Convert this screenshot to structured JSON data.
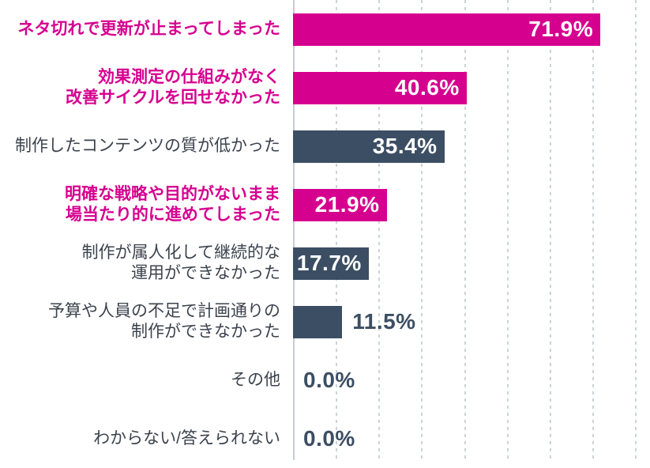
{
  "chart_data": {
    "type": "bar",
    "orientation": "horizontal",
    "title": "",
    "xlabel": "",
    "ylabel": "",
    "unit": "%",
    "xlim": [
      0,
      83.5
    ],
    "gridline_step_percent": 10,
    "grid": true,
    "legend": false,
    "categories": [
      "ネタ切れで更新が止まってしまった",
      "効果測定の仕組みがなく\n改善サイクルを回せなかった",
      "制作したコンテンツの質が低かった",
      "明確な戦略や目的がないまま\n場当たり的に進めてしまった",
      "制作が属人化して継続的な\n運用ができなかった",
      "予算や人員の不足で計画通りの\n制作ができなかった",
      "その他",
      "わからない/答えられない"
    ],
    "values": [
      71.9,
      40.6,
      35.4,
      21.9,
      17.7,
      11.5,
      0.0,
      0.0
    ],
    "rows": [
      {
        "label": "ネタ切れで更新が止まってしまった",
        "value": 71.9,
        "value_label": "71.9%",
        "bar_color": "magenta",
        "label_color": "magenta",
        "label_bold": true,
        "value_position": "inside"
      },
      {
        "label": "効果測定の仕組みがなく\n改善サイクルを回せなかった",
        "value": 40.6,
        "value_label": "40.6%",
        "bar_color": "magenta",
        "label_color": "magenta",
        "label_bold": true,
        "value_position": "inside"
      },
      {
        "label": "制作したコンテンツの質が低かった",
        "value": 35.4,
        "value_label": "35.4%",
        "bar_color": "navy",
        "label_color": "dark",
        "label_bold": false,
        "value_position": "inside"
      },
      {
        "label": "明確な戦略や目的がないまま\n場当たり的に進めてしまった",
        "value": 21.9,
        "value_label": "21.9%",
        "bar_color": "magenta",
        "label_color": "magenta",
        "label_bold": true,
        "value_position": "inside"
      },
      {
        "label": "制作が属人化して継続的な\n運用ができなかった",
        "value": 17.7,
        "value_label": "17.7%",
        "bar_color": "navy",
        "label_color": "dark",
        "label_bold": false,
        "value_position": "inside"
      },
      {
        "label": "予算や人員の不足で計画通りの\n制作ができなかった",
        "value": 11.5,
        "value_label": "11.5%",
        "bar_color": "navy",
        "label_color": "dark",
        "label_bold": false,
        "value_position": "outside"
      },
      {
        "label": "その他",
        "value": 0.0,
        "value_label": "0.0%",
        "bar_color": "navy",
        "label_color": "dark",
        "label_bold": false,
        "value_position": "outside"
      },
      {
        "label": "わからない/答えられない",
        "value": 0.0,
        "value_label": "0.0%",
        "bar_color": "navy",
        "label_color": "dark",
        "label_bold": false,
        "value_position": "outside"
      }
    ]
  },
  "colors": {
    "magenta": "#d6008f",
    "navy": "#3c4e63",
    "dark": "#3b434d",
    "grid": "#ccd2d9",
    "axis": "#c6ccd4",
    "value_inside": "#ffffff",
    "background": "#ffffff"
  }
}
